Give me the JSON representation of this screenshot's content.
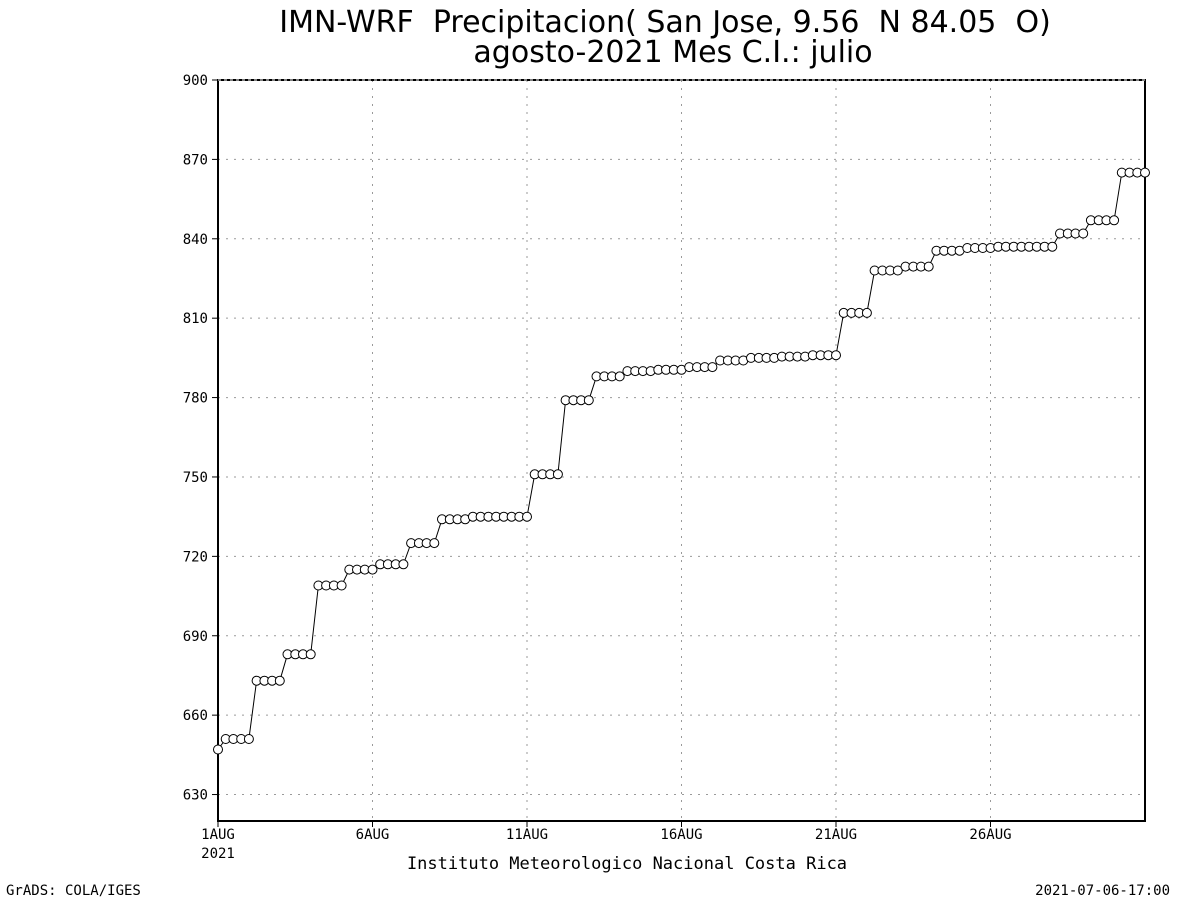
{
  "chart_data": {
    "type": "line",
    "title": "IMN-WRF  Precipitacion( San Jose, 9.56  N 84.05  O)",
    "subtitle": "agosto-2021 Mes C.I.: julio",
    "xlabel": "Instituto Meteorologico Nacional Costa Rica",
    "ylabel": "",
    "ylim": [
      620,
      900
    ],
    "yticks": [
      630,
      660,
      690,
      720,
      750,
      780,
      810,
      840,
      870,
      900
    ],
    "xlim": [
      1,
      31
    ],
    "x_unit": "day of August 2021",
    "xticks": [
      {
        "x": 1,
        "label": "1AUG",
        "sublabel": "2021"
      },
      {
        "x": 6,
        "label": "6AUG",
        "sublabel": ""
      },
      {
        "x": 11,
        "label": "11AUG",
        "sublabel": ""
      },
      {
        "x": 16,
        "label": "16AUG",
        "sublabel": ""
      },
      {
        "x": 21,
        "label": "21AUG",
        "sublabel": ""
      },
      {
        "x": 26,
        "label": "26AUG",
        "sublabel": ""
      }
    ],
    "grid": true,
    "marker": "open-circle",
    "series": [
      {
        "x": [
          1,
          1.25,
          1.5,
          1.75,
          2,
          2.25,
          2.5,
          2.75,
          3,
          3.25,
          3.5,
          3.75,
          4,
          4.25,
          4.5,
          4.75,
          5,
          5.25,
          5.5,
          5.75,
          6,
          6.25,
          6.5,
          6.75,
          7,
          7.25,
          7.5,
          7.75,
          8,
          8.25,
          8.5,
          8.75,
          9,
          9.25,
          9.5,
          9.75,
          10,
          10.25,
          10.5,
          10.75,
          11,
          11.25,
          11.5,
          11.75,
          12,
          12.25,
          12.5,
          12.75,
          13,
          13.25,
          13.5,
          13.75,
          14,
          14.25,
          14.5,
          14.75,
          15,
          15.25,
          15.5,
          15.75,
          16,
          16.25,
          16.5,
          16.75,
          17,
          17.25,
          17.5,
          17.75,
          18,
          18.25,
          18.5,
          18.75,
          19,
          19.25,
          19.5,
          19.75,
          20,
          20.25,
          20.5,
          20.75,
          21,
          21.25,
          21.5,
          21.75,
          22,
          22.25,
          22.5,
          22.75,
          23,
          23.25,
          23.5,
          23.75,
          24,
          24.25,
          24.5,
          24.75,
          25,
          25.25,
          25.5,
          25.75,
          26,
          26.25,
          26.5,
          26.75,
          27,
          27.25,
          27.5,
          27.75,
          28,
          28.25,
          28.5,
          28.75,
          29,
          29.25,
          29.5,
          29.75,
          30,
          30.25,
          30.5,
          30.75,
          31
        ],
        "values": [
          647,
          651,
          651,
          651,
          651,
          673,
          673,
          673,
          673,
          683,
          683,
          683,
          683,
          709,
          709,
          709,
          709,
          715,
          715,
          715,
          715,
          717,
          717,
          717,
          717,
          725,
          725,
          725,
          725,
          734,
          734,
          734,
          734,
          735,
          735,
          735,
          735,
          735,
          735,
          735,
          735,
          751,
          751,
          751,
          751,
          779,
          779,
          779,
          779,
          788,
          788,
          788,
          788,
          790,
          790,
          790,
          790,
          790.5,
          790.5,
          790.5,
          790.5,
          791.5,
          791.5,
          791.5,
          791.5,
          794,
          794,
          794,
          794,
          795,
          795,
          795,
          795,
          795.5,
          795.5,
          795.5,
          795.5,
          796,
          796,
          796,
          796,
          812,
          812,
          812,
          812,
          828,
          828,
          828,
          828,
          829.5,
          829.5,
          829.5,
          829.5,
          835.5,
          835.5,
          835.5,
          835.5,
          836.5,
          836.5,
          836.5,
          836.5,
          837,
          837,
          837,
          837,
          837,
          837,
          837,
          837,
          842,
          842,
          842,
          842,
          847,
          847,
          847,
          847,
          865,
          865,
          865,
          865
        ]
      }
    ]
  },
  "footer": {
    "left": "GrADS: COLA/IGES",
    "right": "2021-07-06-17:00"
  }
}
